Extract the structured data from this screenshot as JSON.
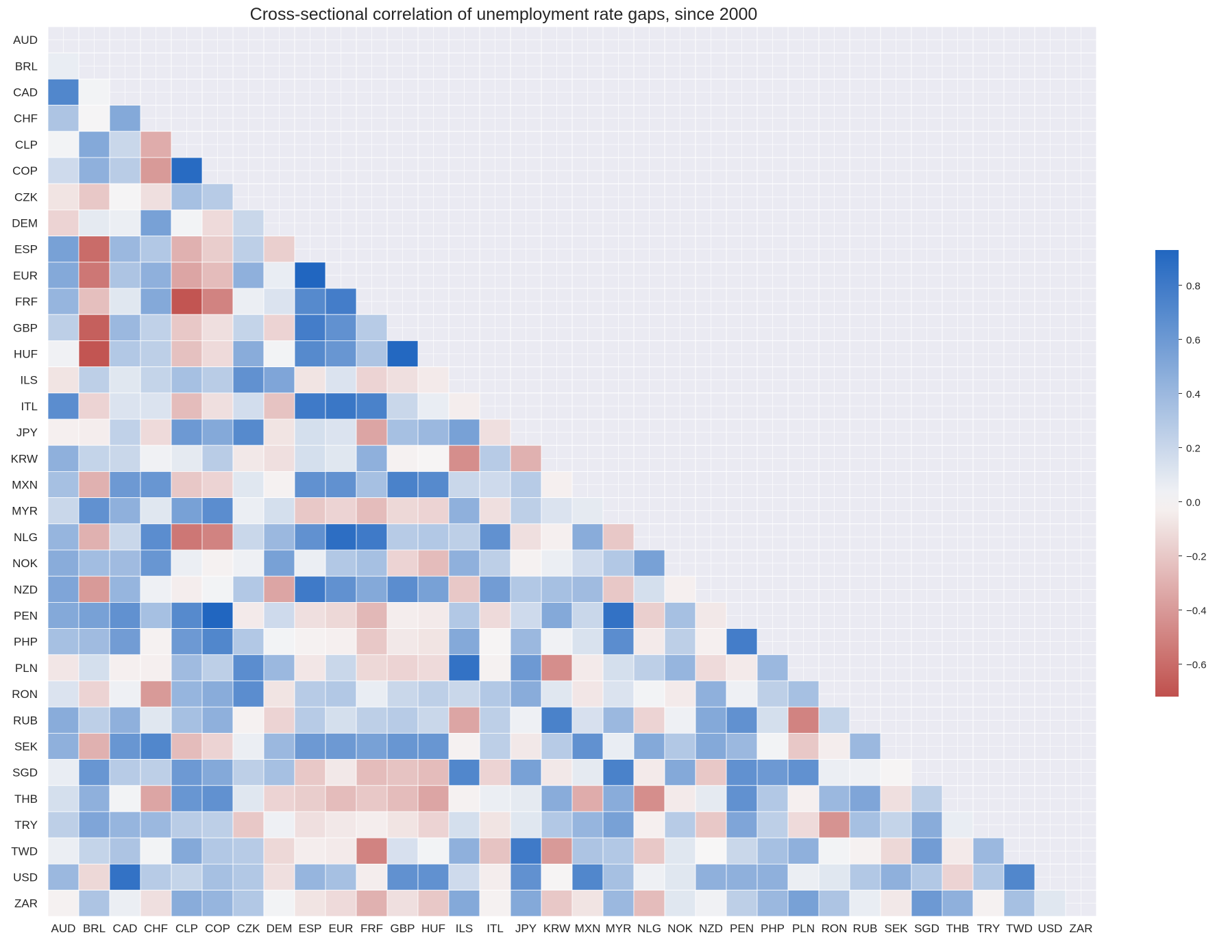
{
  "chart_data": {
    "type": "heatmap",
    "title": "Cross-sectional correlation of unemployment rate gaps, since 2000",
    "xlabel": "",
    "ylabel": "",
    "mask": "upper-triangle-including-diagonal",
    "labels": [
      "AUD",
      "BRL",
      "CAD",
      "CHF",
      "CLP",
      "COP",
      "CZK",
      "DEM",
      "ESP",
      "EUR",
      "FRF",
      "GBP",
      "HUF",
      "ILS",
      "ITL",
      "JPY",
      "KRW",
      "MXN",
      "MYR",
      "NLG",
      "NOK",
      "NZD",
      "PEN",
      "PHP",
      "PLN",
      "RON",
      "RUB",
      "SEK",
      "SGD",
      "THB",
      "TRY",
      "TWD",
      "USD",
      "ZAR"
    ],
    "values": [
      [],
      [
        0.06
      ],
      [
        0.72,
        0.02
      ],
      [
        0.32,
        0.01,
        0.5
      ],
      [
        0.02,
        0.5,
        0.2,
        -0.32
      ],
      [
        0.18,
        0.45,
        0.27,
        -0.4,
        0.9
      ],
      [
        -0.08,
        -0.2,
        0.01,
        -0.1,
        0.35,
        0.28
      ],
      [
        -0.15,
        0.08,
        0.05,
        0.55,
        0.02,
        -0.12,
        0.2
      ],
      [
        0.55,
        -0.6,
        0.4,
        0.3,
        -0.3,
        -0.18,
        0.25,
        -0.17
      ],
      [
        0.5,
        -0.55,
        0.32,
        0.45,
        -0.35,
        -0.25,
        0.45,
        0.06,
        0.93
      ],
      [
        0.42,
        -0.24,
        0.1,
        0.5,
        -0.7,
        -0.5,
        0.05,
        0.12,
        0.7,
        0.78
      ],
      [
        0.25,
        -0.65,
        0.4,
        0.24,
        -0.2,
        -0.1,
        0.22,
        -0.15,
        0.78,
        0.65,
        0.28
      ],
      [
        0.03,
        -0.7,
        0.3,
        0.25,
        -0.23,
        -0.12,
        0.48,
        0.02,
        0.7,
        0.62,
        0.32,
        0.92
      ],
      [
        -0.08,
        0.25,
        0.1,
        0.22,
        0.35,
        0.27,
        0.65,
        0.52,
        -0.08,
        0.12,
        -0.15,
        -0.1,
        -0.05
      ],
      [
        0.68,
        -0.15,
        0.12,
        0.12,
        -0.25,
        -0.1,
        0.16,
        -0.22,
        0.8,
        0.82,
        0.75,
        0.2,
        0.06,
        -0.04
      ],
      [
        -0.03,
        -0.04,
        0.24,
        -0.12,
        0.6,
        0.5,
        0.7,
        -0.08,
        0.15,
        0.12,
        -0.35,
        0.35,
        0.4,
        0.55,
        -0.1
      ],
      [
        0.45,
        0.22,
        0.2,
        0.03,
        0.08,
        0.27,
        -0.06,
        -0.1,
        0.15,
        0.1,
        0.45,
        -0.02,
        -0.01,
        -0.45,
        0.28,
        -0.3
      ],
      [
        0.35,
        -0.3,
        0.6,
        0.62,
        -0.2,
        -0.15,
        0.1,
        -0.02,
        0.65,
        0.65,
        0.35,
        0.75,
        0.7,
        0.2,
        0.18,
        0.28,
        -0.03
      ],
      [
        0.2,
        0.65,
        0.45,
        0.1,
        0.55,
        0.68,
        0.05,
        0.15,
        -0.2,
        -0.15,
        -0.25,
        -0.13,
        -0.15,
        0.45,
        -0.1,
        0.25,
        0.12,
        0.08
      ],
      [
        0.42,
        -0.3,
        0.2,
        0.68,
        -0.55,
        -0.5,
        0.2,
        0.4,
        0.65,
        0.88,
        0.8,
        0.28,
        0.3,
        0.25,
        0.65,
        -0.1,
        -0.03,
        0.48,
        -0.2
      ],
      [
        0.48,
        0.37,
        0.38,
        0.62,
        0.05,
        -0.02,
        0.04,
        0.55,
        0.05,
        0.3,
        0.35,
        -0.15,
        -0.25,
        0.45,
        0.25,
        -0.02,
        0.05,
        0.18,
        0.3,
        0.55
      ],
      [
        0.52,
        -0.4,
        0.42,
        0.04,
        -0.04,
        0.02,
        0.3,
        -0.35,
        0.8,
        0.65,
        0.5,
        0.68,
        0.55,
        -0.2,
        0.58,
        0.3,
        0.35,
        0.38,
        -0.2,
        0.15,
        -0.03
      ],
      [
        0.5,
        0.55,
        0.65,
        0.35,
        0.7,
        0.95,
        -0.05,
        0.18,
        -0.1,
        -0.13,
        -0.27,
        -0.04,
        -0.05,
        0.3,
        -0.12,
        0.18,
        0.5,
        0.2,
        0.85,
        -0.17,
        0.35,
        -0.06
      ],
      [
        0.35,
        0.38,
        0.58,
        -0.02,
        0.6,
        0.72,
        0.3,
        0.02,
        -0.02,
        -0.03,
        -0.2,
        -0.06,
        -0.08,
        0.5,
        -0.01,
        0.4,
        0.03,
        0.13,
        0.68,
        -0.05,
        0.25,
        -0.03,
        0.78
      ],
      [
        -0.07,
        0.15,
        -0.03,
        -0.03,
        0.38,
        0.25,
        0.68,
        0.4,
        -0.07,
        0.2,
        -0.13,
        -0.15,
        -0.12,
        0.85,
        -0.02,
        0.6,
        -0.45,
        -0.05,
        0.15,
        0.25,
        0.42,
        -0.12,
        -0.05,
        0.4
      ],
      [
        0.12,
        -0.15,
        0.04,
        -0.4,
        0.42,
        0.48,
        0.68,
        -0.08,
        0.28,
        0.3,
        0.06,
        0.2,
        0.25,
        0.2,
        0.3,
        0.48,
        0.1,
        -0.07,
        0.12,
        0.02,
        -0.05,
        0.45,
        0.04,
        0.25,
        0.35
      ],
      [
        0.48,
        0.25,
        0.45,
        0.1,
        0.35,
        0.45,
        -0.02,
        -0.15,
        0.28,
        0.15,
        0.25,
        0.28,
        0.2,
        -0.35,
        0.25,
        0.04,
        0.75,
        0.14,
        0.4,
        -0.15,
        0.04,
        0.5,
        0.65,
        0.15,
        -0.5,
        0.22
      ],
      [
        0.45,
        -0.3,
        0.62,
        0.72,
        -0.25,
        -0.15,
        0.05,
        0.4,
        0.6,
        0.6,
        0.55,
        0.62,
        0.62,
        -0.02,
        0.25,
        -0.06,
        0.28,
        0.65,
        0.06,
        0.5,
        0.3,
        0.5,
        0.4,
        0.02,
        -0.2,
        -0.04,
        0.4
      ],
      [
        0.06,
        0.62,
        0.28,
        0.25,
        0.6,
        0.5,
        0.25,
        0.35,
        -0.2,
        -0.06,
        -0.25,
        -0.22,
        -0.25,
        0.72,
        -0.15,
        0.55,
        -0.06,
        0.08,
        0.75,
        -0.05,
        0.5,
        -0.2,
        0.65,
        0.6,
        0.65,
        0.05,
        0.04,
        -0.01
      ],
      [
        0.15,
        0.45,
        0.02,
        -0.35,
        0.62,
        0.65,
        0.1,
        -0.15,
        -0.18,
        -0.25,
        -0.2,
        -0.25,
        -0.35,
        -0.02,
        0.05,
        0.08,
        0.48,
        -0.32,
        0.48,
        -0.45,
        -0.05,
        0.08,
        0.65,
        0.3,
        -0.03,
        0.4,
        0.52,
        -0.1,
        0.25
      ],
      [
        0.25,
        0.52,
        0.42,
        0.4,
        0.27,
        0.25,
        -0.2,
        0.04,
        -0.1,
        -0.06,
        -0.04,
        -0.08,
        -0.15,
        0.15,
        -0.08,
        0.1,
        0.3,
        0.42,
        0.55,
        -0.03,
        0.28,
        -0.2,
        0.52,
        0.25,
        -0.12,
        -0.43,
        0.35,
        0.22,
        0.48,
        0.06
      ],
      [
        0.05,
        0.22,
        0.32,
        0.02,
        0.5,
        0.3,
        0.28,
        -0.13,
        -0.04,
        -0.05,
        -0.5,
        0.14,
        0.02,
        0.45,
        -0.22,
        0.8,
        -0.4,
        0.32,
        0.3,
        -0.2,
        0.1,
        0.0,
        0.2,
        0.35,
        0.45,
        0.02,
        -0.02,
        -0.13,
        0.58,
        -0.05,
        0.4
      ],
      [
        0.4,
        -0.13,
        0.85,
        0.28,
        0.22,
        0.35,
        0.3,
        -0.1,
        0.42,
        0.35,
        -0.04,
        0.65,
        0.65,
        0.18,
        -0.04,
        0.65,
        -0.01,
        0.72,
        0.35,
        0.04,
        0.1,
        0.45,
        0.45,
        0.45,
        0.05,
        0.1,
        0.3,
        0.45,
        0.3,
        -0.15,
        0.3,
        0.72
      ],
      [
        -0.02,
        0.32,
        0.05,
        -0.1,
        0.48,
        0.42,
        0.3,
        0.02,
        -0.08,
        -0.12,
        -0.3,
        -0.1,
        -0.2,
        0.5,
        -0.02,
        0.5,
        -0.2,
        -0.08,
        0.4,
        -0.25,
        0.1,
        0.03,
        0.25,
        0.4,
        0.55,
        0.32,
        0.06,
        -0.06,
        0.6,
        0.45,
        -0.02,
        0.35,
        0.1
      ]
    ],
    "colorbar": {
      "min": -0.72,
      "max": 0.93,
      "ticks": [
        "0.8",
        "0.6",
        "0.4",
        "0.2",
        "0.0",
        "−0.2",
        "−0.4",
        "−0.6"
      ],
      "tick_values": [
        0.8,
        0.6,
        0.4,
        0.2,
        0.0,
        -0.2,
        -0.4,
        -0.6
      ],
      "colors": {
        "negative": "#c0504d",
        "center": "#f7f6f6",
        "positive": "#2166c0"
      }
    },
    "grid": true
  }
}
